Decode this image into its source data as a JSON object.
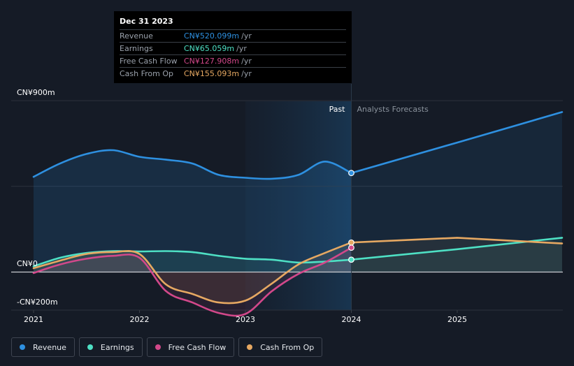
{
  "tooltip": {
    "date": "Dec 31 2023",
    "rows": [
      {
        "label": "Revenue",
        "value": "CN¥520.099m",
        "unit": "/yr",
        "color": "#2e90e0"
      },
      {
        "label": "Earnings",
        "value": "CN¥65.059m",
        "unit": "/yr",
        "color": "#4ee0c4"
      },
      {
        "label": "Free Cash Flow",
        "value": "CN¥127.908m",
        "unit": "/yr",
        "color": "#d2488a"
      },
      {
        "label": "Cash From Op",
        "value": "CN¥155.093m",
        "unit": "/yr",
        "color": "#e6a862"
      }
    ]
  },
  "legend": [
    {
      "label": "Revenue",
      "color": "#2e90e0"
    },
    {
      "label": "Earnings",
      "color": "#4ee0c4"
    },
    {
      "label": "Free Cash Flow",
      "color": "#d2488a"
    },
    {
      "label": "Cash From Op",
      "color": "#e6a862"
    }
  ],
  "chart_data": {
    "type": "line",
    "title": "",
    "y_labels": {
      "top": "CN¥900m",
      "zero": "CN¥0",
      "bottom": "-CN¥200m"
    },
    "ylim": [
      -200,
      900
    ],
    "xlim": [
      2021.0,
      2025.99
    ],
    "x_ticks": [
      {
        "label": "2021",
        "value": 2021.0
      },
      {
        "label": "2022",
        "value": 2022.0
      },
      {
        "label": "2023",
        "value": 2023.0
      },
      {
        "label": "2024",
        "value": 2024.0
      },
      {
        "label": "2025",
        "value": 2025.0
      }
    ],
    "divider_x": 2024.0,
    "shaded_start_x": 2023.0,
    "past_label": "Past",
    "forecast_label": "Analysts Forecasts",
    "series": [
      {
        "name": "Revenue",
        "color": "#2e90e0",
        "fill": true,
        "x": [
          2021.0,
          2021.25,
          2021.5,
          2021.75,
          2022.0,
          2022.25,
          2022.5,
          2022.75,
          2023.0,
          2023.25,
          2023.5,
          2023.75,
          2024.0
        ],
        "y": [
          500,
          570,
          620,
          640,
          605,
          590,
          570,
          510,
          495,
          490,
          510,
          580,
          520
        ],
        "forecast_x": [
          2024.0,
          2025.0,
          2025.99
        ],
        "forecast_y": [
          520,
          680,
          840
        ],
        "marker_x": 2024.0,
        "marker_y": 520
      },
      {
        "name": "Earnings",
        "color": "#4ee0c4",
        "fill": true,
        "x": [
          2021.0,
          2021.25,
          2021.5,
          2021.75,
          2022.0,
          2022.25,
          2022.5,
          2022.75,
          2023.0,
          2023.25,
          2023.5,
          2023.75,
          2024.0
        ],
        "y": [
          30,
          75,
          100,
          110,
          108,
          110,
          105,
          85,
          70,
          65,
          50,
          55,
          65
        ],
        "forecast_x": [
          2024.0,
          2025.0,
          2025.99
        ],
        "forecast_y": [
          65,
          120,
          180
        ],
        "marker_x": 2024.0,
        "marker_y": 65
      },
      {
        "name": "Free Cash Flow",
        "color": "#d2488a",
        "fill": true,
        "x": [
          2021.0,
          2021.25,
          2021.5,
          2021.75,
          2022.0,
          2022.25,
          2022.5,
          2022.75,
          2023.0,
          2023.25,
          2023.5,
          2023.75,
          2024.0
        ],
        "y": [
          -5,
          40,
          70,
          85,
          75,
          -100,
          -160,
          -215,
          -220,
          -100,
          -10,
          50,
          128
        ],
        "marker_x": 2024.0,
        "marker_y": 128
      },
      {
        "name": "Cash From Op",
        "color": "#e6a862",
        "fill": true,
        "x": [
          2021.0,
          2021.25,
          2021.5,
          2021.75,
          2022.0,
          2022.25,
          2022.5,
          2022.75,
          2023.0,
          2023.25,
          2023.5,
          2023.75,
          2024.0
        ],
        "y": [
          20,
          60,
          95,
          105,
          95,
          -65,
          -115,
          -160,
          -150,
          -60,
          40,
          100,
          155
        ],
        "forecast_x": [
          2024.0,
          2025.0,
          2025.99
        ],
        "forecast_y": [
          155,
          180,
          150
        ],
        "marker_x": 2024.0,
        "marker_y": 155
      }
    ]
  }
}
